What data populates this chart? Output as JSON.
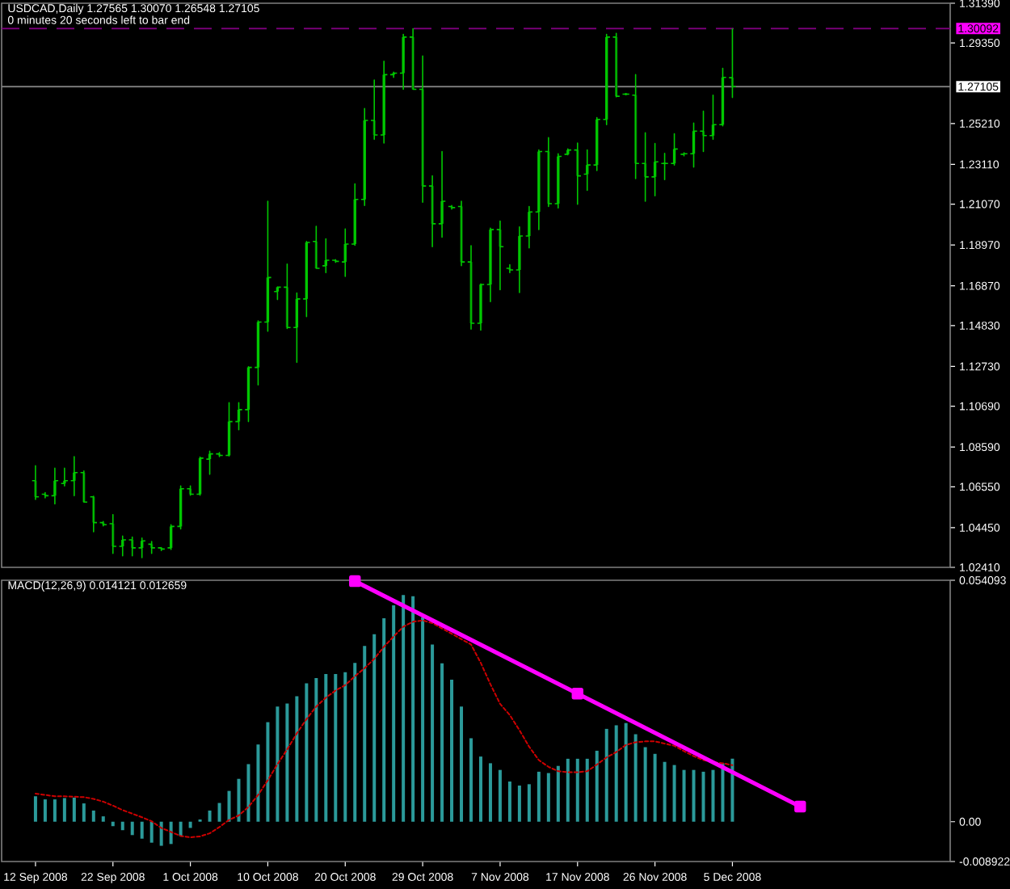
{
  "chart_data": [
    {
      "type": "candlestick",
      "title": "USDCAD,Daily 1.27565 1.30070 1.26548 1.27105",
      "subtitle": "0 minutes 20 seconds left to bar end",
      "color": "#00c800",
      "tick_labels": "y",
      "categories": [
        null,
        null,
        null,
        null,
        null,
        null,
        null,
        null,
        null,
        null,
        null,
        null,
        null,
        null,
        null,
        null,
        null,
        null,
        null,
        null,
        null,
        null,
        null,
        null,
        null,
        null,
        null,
        null,
        null,
        null,
        null,
        null,
        null,
        null,
        null,
        null,
        null,
        null,
        null,
        null,
        null,
        null,
        null,
        null,
        null,
        null,
        null,
        null,
        null,
        null,
        null,
        null,
        null,
        null,
        null,
        null,
        null,
        null,
        null,
        null,
        null,
        null,
        null,
        null,
        null,
        null,
        null,
        null,
        null,
        null,
        null,
        null,
        null,
        null,
        null,
        null,
        null,
        null,
        null,
        null,
        null,
        null,
        null,
        null,
        null,
        null,
        null,
        null,
        null,
        null,
        null,
        null,
        null,
        null,
        null
      ],
      "ohlc": [
        [
          1.0686,
          1.0763,
          1.059,
          1.0603
        ],
        [
          1.0617,
          1.0625,
          1.0598,
          1.0609
        ],
        [
          1.0609,
          1.075,
          1.0567,
          1.0686
        ],
        [
          1.0672,
          1.075,
          1.0659,
          1.0686
        ],
        [
          1.0686,
          1.081,
          1.0609,
          1.0728
        ],
        [
          1.0728,
          1.0736,
          1.0576,
          1.0576
        ],
        [
          1.0603,
          1.0606,
          1.0424,
          1.0471
        ],
        [
          1.0471,
          1.0476,
          1.0454,
          1.046
        ],
        [
          1.0465,
          1.0512,
          1.0313,
          1.0349
        ],
        [
          1.0349,
          1.0402,
          1.03,
          1.0382
        ],
        [
          1.0382,
          1.0396,
          1.03,
          1.0341
        ],
        [
          1.0341,
          1.0391,
          1.0291,
          1.0377
        ],
        [
          1.036,
          1.0374,
          1.0313,
          1.0341
        ],
        [
          1.0341,
          1.0343,
          1.0327,
          1.0335
        ],
        [
          1.0341,
          1.046,
          1.0333,
          1.0451
        ],
        [
          1.0451,
          1.0659,
          1.0438,
          1.0645
        ],
        [
          1.0645,
          1.0659,
          1.0612,
          1.0617
        ],
        [
          1.0617,
          1.0808,
          1.0612,
          1.0802
        ],
        [
          1.0797,
          1.0838,
          1.0719,
          1.0824
        ],
        [
          1.0824,
          1.083,
          1.081,
          1.0816
        ],
        [
          1.0816,
          1.1087,
          1.0813,
          1.099
        ],
        [
          1.099,
          1.1087,
          1.0948,
          1.1051
        ],
        [
          1.1051,
          1.1272,
          1.099,
          1.1268
        ],
        [
          1.1268,
          1.1507,
          1.1178,
          1.1501
        ],
        [
          1.1501,
          1.2122,
          1.1454,
          1.173
        ],
        [
          1.1658,
          1.1681,
          1.1617,
          1.168
        ],
        [
          1.168,
          1.1799,
          1.1468,
          1.1473
        ],
        [
          1.1473,
          1.165,
          1.1294,
          1.162
        ],
        [
          1.162,
          1.1915,
          1.1529,
          1.191
        ],
        [
          1.1915,
          1.1993,
          1.1777,
          1.1777
        ],
        [
          1.179,
          1.1929,
          1.1755,
          1.1819
        ],
        [
          1.1819,
          1.1822,
          1.1808,
          1.1813
        ],
        [
          1.181,
          1.1979,
          1.1736,
          1.1902
        ],
        [
          1.1902,
          1.2211,
          1.1896,
          1.2131
        ],
        [
          1.2131,
          1.2598,
          1.21,
          1.2537
        ],
        [
          1.2537,
          1.2744,
          1.244,
          1.2462
        ],
        [
          1.2462,
          1.2841,
          1.2421,
          1.2772
        ],
        [
          1.2772,
          1.2785,
          1.2758,
          1.278
        ],
        [
          1.278,
          1.2979,
          1.2697,
          1.2965
        ],
        [
          1.2965,
          1.3008,
          1.2697,
          1.2697
        ],
        [
          1.2697,
          1.2868,
          1.2117,
          1.22
        ],
        [
          1.22,
          1.2252,
          1.1888,
          1.2006
        ],
        [
          1.2006,
          1.2377,
          1.1937,
          1.2122
        ],
        [
          1.2095,
          1.21,
          1.2081,
          1.2089
        ],
        [
          1.2095,
          1.2122,
          1.1791,
          1.181
        ],
        [
          1.181,
          1.1893,
          1.1465,
          1.1495
        ],
        [
          1.1495,
          1.1697,
          1.146,
          1.1694
        ],
        [
          1.1694,
          1.1984,
          1.1606,
          1.1976
        ],
        [
          1.1976,
          1.202,
          1.1667,
          1.1888
        ],
        [
          1.1777,
          1.1796,
          1.1755,
          1.1769
        ],
        [
          1.1769,
          1.199,
          1.1653,
          1.1943
        ],
        [
          1.1943,
          1.2095,
          1.1882,
          1.2067
        ],
        [
          1.2067,
          1.2385,
          1.1976,
          1.2377
        ],
        [
          1.2377,
          1.2448,
          1.2095,
          1.2109
        ],
        [
          1.2109,
          1.2366,
          1.2087,
          1.2352
        ],
        [
          1.2363,
          1.239,
          1.236,
          1.2385
        ],
        [
          1.2385,
          1.2421,
          1.2106,
          1.2252
        ],
        [
          1.2261,
          1.2385,
          1.2178,
          1.2308
        ],
        [
          1.2308,
          1.2551,
          1.228,
          1.2542
        ],
        [
          1.2542,
          1.2979,
          1.2515,
          1.2965
        ],
        [
          1.2965,
          1.2984,
          1.2658,
          1.2661
        ],
        [
          1.2672,
          1.2675,
          1.2669,
          1.2672
        ],
        [
          1.2667,
          1.2772,
          1.2238,
          1.2316
        ],
        [
          1.2316,
          1.2473,
          1.2122,
          1.2247
        ],
        [
          1.2247,
          1.2418,
          1.215,
          1.2324
        ],
        [
          1.2316,
          1.2368,
          1.2233,
          1.2316
        ],
        [
          1.2316,
          1.2468,
          1.2308,
          1.239
        ],
        [
          1.2363,
          1.2371,
          1.2355,
          1.2366
        ],
        [
          1.2366,
          1.2523,
          1.2297,
          1.2482
        ],
        [
          1.2482,
          1.2584,
          1.2377,
          1.2459
        ],
        [
          1.2459,
          1.2667,
          1.244,
          1.2515
        ],
        [
          1.2515,
          1.2805,
          1.2509,
          1.2758
        ],
        [
          1.27565,
          1.3007,
          1.26548,
          1.27105
        ],
        null,
        null,
        null,
        null,
        null,
        null,
        null,
        null,
        null,
        null,
        null,
        null,
        null,
        null,
        null,
        null,
        null,
        null,
        null,
        null,
        null,
        null
      ],
      "colors": [
        "#006400",
        "#006400",
        "#00c800",
        "#00c800",
        "#00c800",
        "#006400",
        "#006400",
        "#006400",
        "#006400",
        "#00c800",
        "#006400",
        "#00c800",
        "#006400",
        "#006400",
        "#00c800",
        "#00c800",
        "#006400",
        "#00c800",
        "#00c800",
        "#006400",
        "#00c800",
        "#00c800",
        "#00c800",
        "#00c800",
        "#00c800",
        "#00c800",
        "#006400",
        "#00c800",
        "#00c800",
        "#006400",
        "#00c800",
        "#006400",
        "#00c800",
        "#00c800",
        "#00c800",
        "#006400",
        "#00c800",
        "#00c800",
        "#00c800",
        "#006400",
        "#006400",
        "#006400",
        "#00c800",
        "#006400",
        "#006400",
        "#006400",
        "#00c800",
        "#00c800",
        "#006400",
        "#006400",
        "#00c800",
        "#00c800",
        "#00c800",
        "#006400",
        "#00c800",
        "#00c800",
        "#006400",
        "#00c800",
        "#00c800",
        "#00c800",
        "#006400",
        "#00c800",
        "#006400",
        "#006400",
        "#00c800",
        "#00c800",
        "#00c800",
        "#00c800",
        "#00c800",
        "#006400",
        "#00c800",
        "#00c800",
        "#006400",
        null,
        null,
        null,
        null,
        null,
        null,
        null,
        null,
        null,
        null,
        null,
        null,
        null,
        null,
        null,
        null,
        null,
        null,
        null,
        null,
        null,
        null
      ],
      "ylim": [
        1.0241,
        1.3139
      ],
      "yticks": [
        {
          "value": 1.3139,
          "label": "1.31390"
        },
        {
          "value": 1.2935,
          "label": "1.29350"
        },
        {
          "value": 1.2521,
          "label": "1.25210"
        },
        {
          "value": 1.2311,
          "label": "1.23110"
        },
        {
          "value": 1.2107,
          "label": "1.21070"
        },
        {
          "value": 1.1897,
          "label": "1.18970"
        },
        {
          "value": 1.1687,
          "label": "1.16870"
        },
        {
          "value": 1.1483,
          "label": "1.14830"
        },
        {
          "value": 1.1273,
          "label": "1.12730"
        },
        {
          "value": 1.1069,
          "label": "1.10690"
        },
        {
          "value": 1.0859,
          "label": "1.08590"
        },
        {
          "value": 1.0655,
          "label": "1.06550"
        },
        {
          "value": 1.0445,
          "label": "1.04450"
        },
        {
          "value": 1.0241,
          "label": "1.02410"
        }
      ],
      "ref_lines": [
        {
          "axis": "y",
          "value": 1.30092,
          "label": "1.30092",
          "color": "#800080",
          "line_style": "dashed"
        },
        {
          "axis": "y",
          "value": 1.27105,
          "label": "1.27105",
          "color": "#808080",
          "line_style": "solid"
        }
      ]
    },
    {
      "type": "bar",
      "title": "MACD(12,26,9) 0.014121 0.012659",
      "marker": "square",
      "categories": [
        "12 Sep 2008",
        null,
        null,
        null,
        null,
        null,
        null,
        null,
        "22 Sep 2008",
        null,
        null,
        null,
        null,
        null,
        null,
        null,
        "1 Oct 2008",
        null,
        null,
        null,
        null,
        null,
        null,
        null,
        "10 Oct 2008",
        null,
        null,
        null,
        null,
        null,
        null,
        null,
        "20 Oct 2008",
        null,
        null,
        null,
        null,
        null,
        null,
        null,
        "29 Oct 2008",
        null,
        null,
        null,
        null,
        null,
        null,
        null,
        "7 Nov 2008",
        null,
        null,
        null,
        null,
        null,
        null,
        null,
        "17 Nov 2008",
        null,
        null,
        null,
        null,
        null,
        null,
        null,
        "26 Nov 2008",
        null,
        null,
        null,
        null,
        null,
        null,
        null,
        "5 Dec 2008",
        null,
        null,
        null,
        null,
        null,
        null,
        null,
        null,
        null,
        null,
        null,
        null,
        null,
        null,
        null,
        null,
        null,
        null,
        null,
        null,
        null,
        null
      ],
      "series": [
        {
          "type": "bar",
          "color": "#2b9a9a",
          "values": [
            0.0057,
            0.005,
            0.005,
            0.0053,
            0.0054,
            0.0041,
            0.0025,
            0.0012,
            -0.001,
            -0.0019,
            -0.003,
            -0.0038,
            -0.0047,
            -0.0054,
            -0.005,
            -0.0032,
            -0.0014,
            0.0005,
            0.0025,
            0.0042,
            0.0069,
            0.0096,
            0.0129,
            0.0173,
            0.0223,
            0.0258,
            0.0265,
            0.0281,
            0.031,
            0.0322,
            0.0331,
            0.0331,
            0.0335,
            0.0356,
            0.0394,
            0.042,
            0.0456,
            0.0485,
            0.0508,
            0.0505,
            0.0458,
            0.0397,
            0.0355,
            0.0318,
            0.0258,
            0.0187,
            0.0146,
            0.0131,
            0.0116,
            0.009,
            0.0081,
            0.0084,
            0.0112,
            0.0109,
            0.0125,
            0.0141,
            0.0141,
            0.0141,
            0.0159,
            0.0208,
            0.0216,
            0.0221,
            0.0196,
            0.0167,
            0.0152,
            0.0134,
            0.0127,
            0.0116,
            0.0116,
            0.0112,
            0.0116,
            0.0131,
            0.014121,
            null,
            null,
            null,
            null,
            null,
            null,
            null,
            null,
            null,
            null,
            null,
            null,
            null,
            null,
            null,
            null,
            null,
            null,
            null,
            null,
            null,
            null
          ]
        },
        {
          "type": "line",
          "color": "#cc0000",
          "line_style": "dotted",
          "marker": "none",
          "values": [
            0.0063,
            0.006,
            0.0057,
            0.0057,
            0.0056,
            0.0055,
            0.0051,
            0.0045,
            0.0036,
            0.0026,
            0.0018,
            0.001,
            0.0001,
            -0.0014,
            -0.0023,
            -0.0032,
            -0.0035,
            -0.0033,
            -0.0026,
            -0.0012,
            0.0004,
            0.0014,
            0.0033,
            0.006,
            0.0093,
            0.0129,
            0.0162,
            0.0198,
            0.023,
            0.0258,
            0.0278,
            0.0294,
            0.0306,
            0.0326,
            0.0344,
            0.0365,
            0.0392,
            0.0415,
            0.0437,
            0.0448,
            0.0451,
            0.0445,
            0.0433,
            0.0421,
            0.0409,
            0.0397,
            0.0356,
            0.0308,
            0.0264,
            0.0239,
            0.0205,
            0.0168,
            0.0138,
            0.0123,
            0.0113,
            0.0111,
            0.0111,
            0.0113,
            0.0128,
            0.0144,
            0.0156,
            0.0172,
            0.0178,
            0.018,
            0.018,
            0.0175,
            0.017,
            0.0158,
            0.0147,
            0.0138,
            0.0133,
            0.0131,
            0.012659,
            null,
            null,
            null,
            null,
            null,
            null,
            null,
            null,
            null,
            null,
            null,
            null,
            null,
            null,
            null,
            null,
            null,
            null,
            null,
            null,
            null,
            null
          ]
        },
        {
          "type": "line",
          "color": "#ff00ff",
          "values": [
            null,
            null,
            null,
            null,
            null,
            null,
            null,
            null,
            null,
            null,
            null,
            null,
            null,
            null,
            null,
            null,
            null,
            null,
            null,
            null,
            null,
            null,
            null,
            null,
            null,
            null,
            null,
            null,
            null,
            null,
            null,
            null,
            null,
            0.0539,
            null,
            null,
            null,
            null,
            null,
            null,
            null,
            null,
            null,
            null,
            null,
            null,
            null,
            null,
            null,
            null,
            null,
            null,
            null,
            null,
            null,
            null,
            0.0287,
            null,
            null,
            null,
            null,
            null,
            null,
            null,
            null,
            null,
            null,
            null,
            null,
            null,
            null,
            null,
            null,
            null,
            null,
            null,
            null,
            null,
            null,
            0.0034,
            null,
            null,
            null,
            null,
            null,
            null,
            null,
            null,
            null,
            null,
            null,
            null,
            null,
            null,
            null
          ]
        }
      ],
      "ylim": [
        -0.008922,
        0.054093
      ],
      "yticks": [
        -0.008922,
        {
          "value": 0,
          "label": "0.00"
        },
        0.054093
      ]
    }
  ]
}
